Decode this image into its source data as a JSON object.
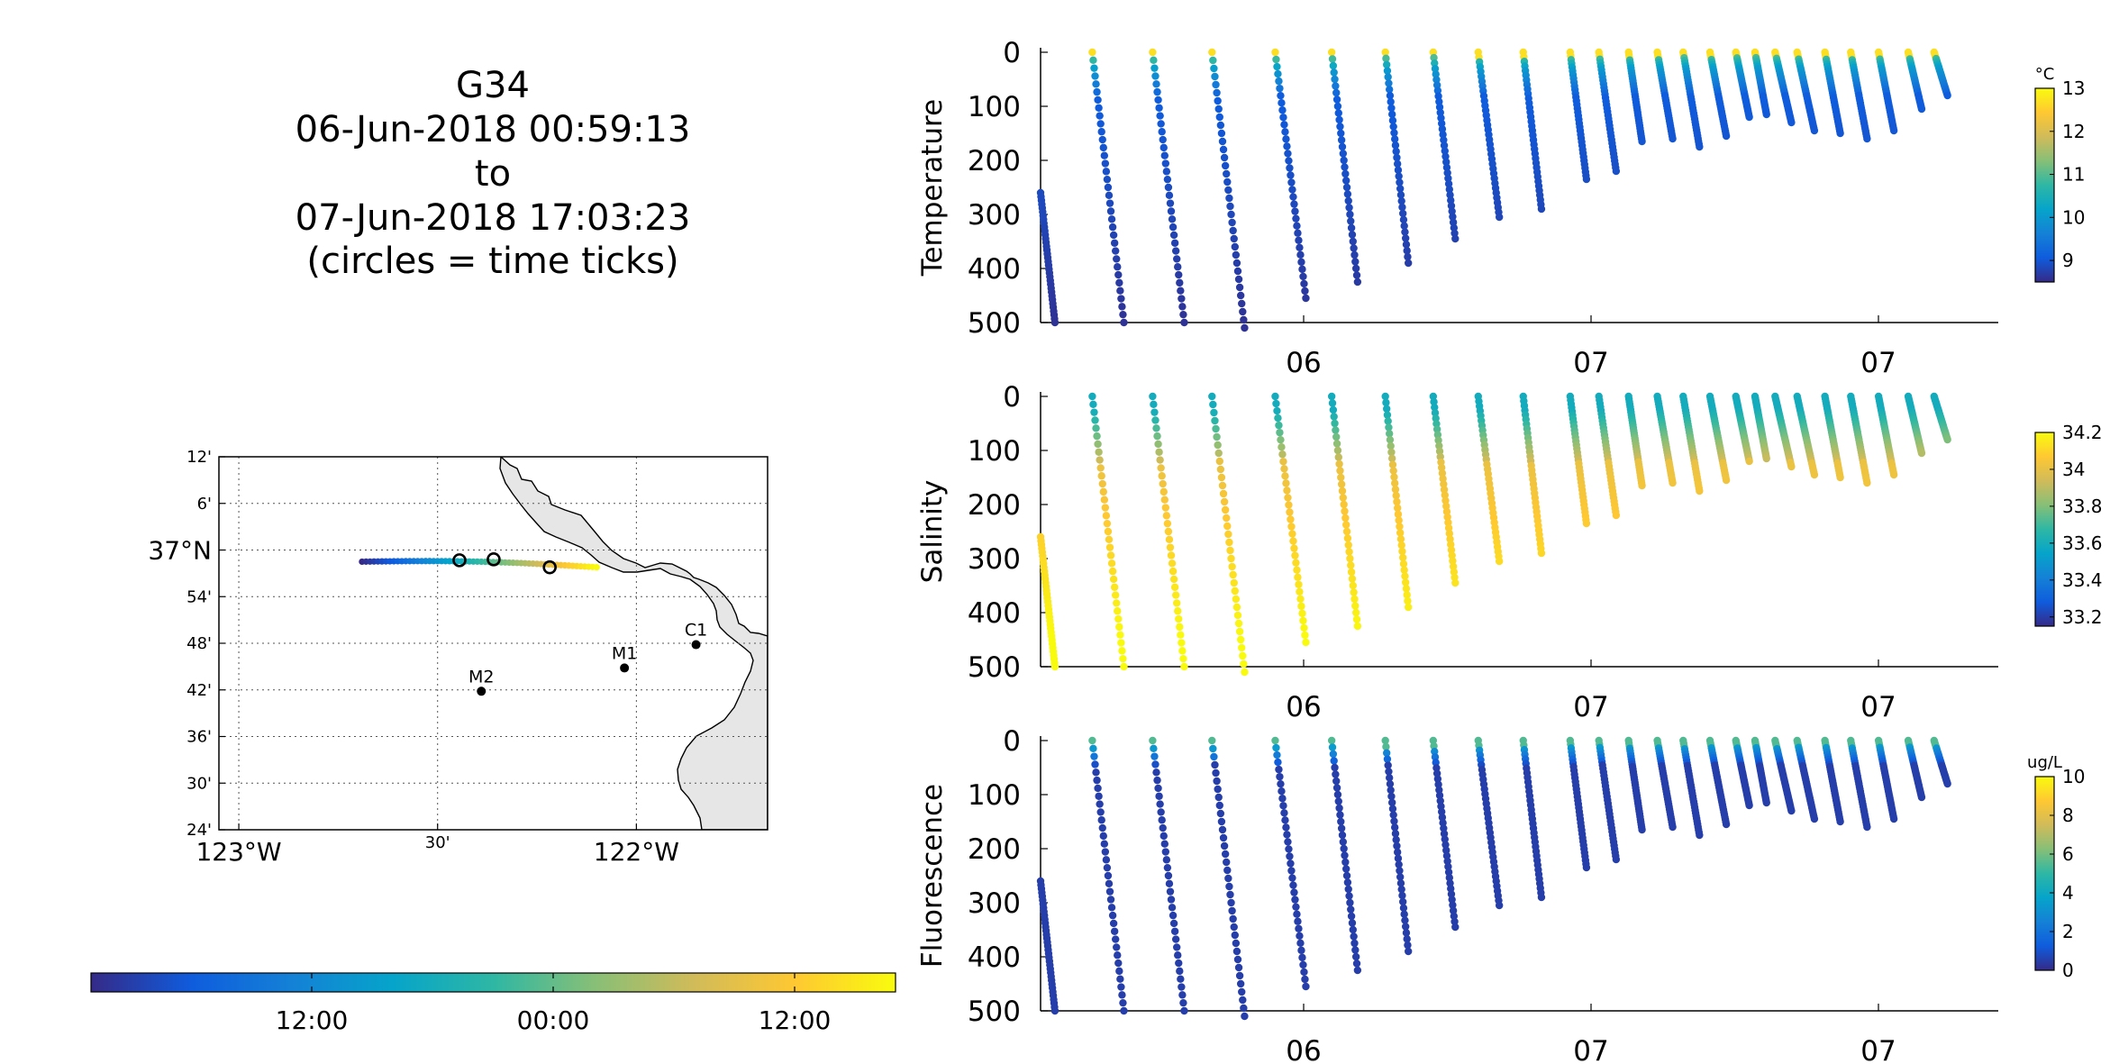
{
  "title": {
    "lines": [
      "G34",
      "06-Jun-2018 00:59:13",
      "to",
      "07-Jun-2018 17:03:23",
      "(circles = time ticks)"
    ]
  },
  "colors": {
    "parula": [
      "#352a87",
      "#0f5cdd",
      "#1481d6",
      "#06a4ca",
      "#2eb7a4",
      "#87bf77",
      "#d1bb59",
      "#fec832",
      "#f9fb0e"
    ],
    "land": "#e6e6e6",
    "marker": "#000000"
  },
  "chart_data": [
    {
      "type": "map",
      "name": "track-map",
      "lon_range": [
        -123.05,
        -121.67
      ],
      "lat_range": [
        36.4,
        37.2
      ],
      "lon_ticks": [
        -123.0,
        -122.5,
        -122.0
      ],
      "lon_tick_labels": [
        "123°W",
        "30'",
        "122°W"
      ],
      "lat_ticks": [
        37.2,
        37.1,
        37.0,
        36.9,
        36.8,
        36.7,
        36.6,
        36.5,
        36.4
      ],
      "lat_tick_labels": [
        "12'",
        "6'",
        "37°N",
        "54'",
        "48'",
        "42'",
        "36'",
        "30'",
        "24'"
      ],
      "grid": true,
      "track": {
        "lon_start": -122.69,
        "lon_end": -122.1,
        "lat_start": 36.975,
        "lat_end": 36.963
      },
      "time_ticks": [
        {
          "lon": -122.445,
          "lat": 36.978
        },
        {
          "lon": -122.359,
          "lat": 36.98
        },
        {
          "lon": -122.218,
          "lat": 36.963
        }
      ],
      "stations": [
        {
          "label": "C1",
          "lon": -121.85,
          "lat": 36.797
        },
        {
          "label": "M1",
          "lon": -122.03,
          "lat": 36.747
        },
        {
          "label": "M2",
          "lon": -122.39,
          "lat": 36.697
        }
      ],
      "colorbar": {
        "orientation": "horizontal",
        "tick_labels": [
          "12:00",
          "00:00",
          "12:00"
        ]
      }
    },
    {
      "type": "scatter",
      "name": "temperature-section",
      "ylabel": "Temperature",
      "ylim": [
        500,
        0
      ],
      "yticks": [
        0,
        100,
        200,
        300,
        400,
        500
      ],
      "xtick_labels": [
        "06",
        "07",
        "07"
      ],
      "colorbar": {
        "unit": "°C",
        "range": [
          8.5,
          13
        ],
        "ticks": [
          "9",
          "10",
          "11",
          "12",
          "13"
        ],
        "tick_values": [
          9,
          10,
          11,
          12,
          13
        ]
      },
      "profile_style": "temperature"
    },
    {
      "type": "scatter",
      "name": "salinity-section",
      "ylabel": "Salinity",
      "ylim": [
        500,
        0
      ],
      "yticks": [
        0,
        100,
        200,
        300,
        400,
        500
      ],
      "xtick_labels": [
        "06",
        "07",
        "07"
      ],
      "colorbar": {
        "unit": "",
        "range": [
          33.15,
          34.2
        ],
        "ticks": [
          "33.2",
          "33.4",
          "33.6",
          "33.8",
          "34",
          "34.2"
        ],
        "tick_values": [
          33.2,
          33.4,
          33.6,
          33.8,
          34.0,
          34.2
        ]
      },
      "profile_style": "salinity"
    },
    {
      "type": "scatter",
      "name": "fluorescence-section",
      "ylabel": "Fluorescence",
      "ylim": [
        500,
        0
      ],
      "yticks": [
        0,
        100,
        200,
        300,
        400,
        500
      ],
      "xtick_labels": [
        "06",
        "07",
        "07"
      ],
      "colorbar": {
        "unit": "ug/L",
        "range": [
          0,
          10
        ],
        "ticks": [
          "0",
          "2",
          "4",
          "6",
          "8",
          "10"
        ],
        "tick_values": [
          0,
          2,
          4,
          6,
          8,
          10
        ]
      },
      "profile_style": "fluorescence"
    }
  ],
  "profiles": {
    "note_units": "time index 0-1 across section; depth in dbar",
    "casts": [
      {
        "t0": 0.0,
        "t1": 0.015,
        "d0": 260,
        "d1": 500
      },
      {
        "t0": 0.054,
        "t1": 0.087,
        "d0": 0,
        "d1": 500
      },
      {
        "t0": 0.117,
        "t1": 0.15,
        "d0": 0,
        "d1": 500
      },
      {
        "t0": 0.179,
        "t1": 0.213,
        "d0": 0,
        "d1": 510
      },
      {
        "t0": 0.245,
        "t1": 0.277,
        "d0": 0,
        "d1": 455
      },
      {
        "t0": 0.304,
        "t1": 0.331,
        "d0": 0,
        "d1": 425
      },
      {
        "t0": 0.36,
        "t1": 0.384,
        "d0": 0,
        "d1": 390
      },
      {
        "t0": 0.41,
        "t1": 0.433,
        "d0": 0,
        "d1": 345
      },
      {
        "t0": 0.457,
        "t1": 0.479,
        "d0": 0,
        "d1": 305
      },
      {
        "t0": 0.504,
        "t1": 0.523,
        "d0": 0,
        "d1": 290
      },
      {
        "t0": 0.553,
        "t1": 0.57,
        "d0": 0,
        "d1": 235
      },
      {
        "t0": 0.583,
        "t1": 0.601,
        "d0": 0,
        "d1": 220
      },
      {
        "t0": 0.614,
        "t1": 0.628,
        "d0": 0,
        "d1": 165
      },
      {
        "t0": 0.644,
        "t1": 0.66,
        "d0": 0,
        "d1": 160
      },
      {
        "t0": 0.671,
        "t1": 0.688,
        "d0": 0,
        "d1": 175
      },
      {
        "t0": 0.699,
        "t1": 0.716,
        "d0": 0,
        "d1": 155
      },
      {
        "t0": 0.726,
        "t1": 0.74,
        "d0": 0,
        "d1": 120
      },
      {
        "t0": 0.746,
        "t1": 0.758,
        "d0": 0,
        "d1": 115
      },
      {
        "t0": 0.767,
        "t1": 0.784,
        "d0": 0,
        "d1": 130
      },
      {
        "t0": 0.79,
        "t1": 0.808,
        "d0": 0,
        "d1": 145
      },
      {
        "t0": 0.819,
        "t1": 0.835,
        "d0": 0,
        "d1": 150
      },
      {
        "t0": 0.846,
        "t1": 0.863,
        "d0": 0,
        "d1": 160
      },
      {
        "t0": 0.875,
        "t1": 0.891,
        "d0": 0,
        "d1": 145
      },
      {
        "t0": 0.906,
        "t1": 0.92,
        "d0": 0,
        "d1": 105
      },
      {
        "t0": 0.933,
        "t1": 0.947,
        "d0": 0,
        "d1": 80
      }
    ]
  }
}
